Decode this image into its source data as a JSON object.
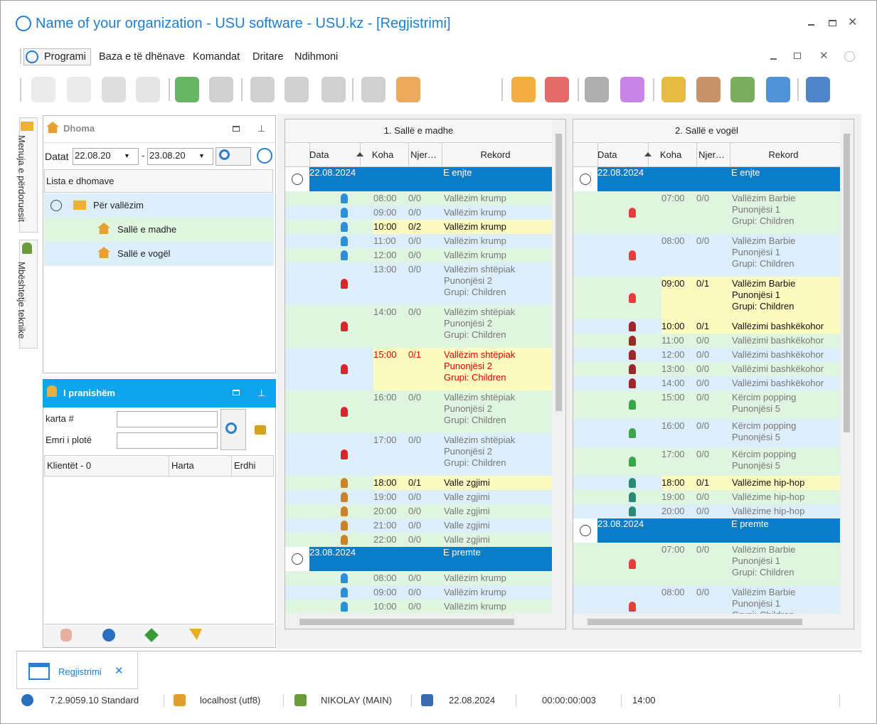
{
  "window": {
    "title": "Name of your organization - USU software - USU.kz - [Regjistrimi]"
  },
  "menu": [
    "Programi",
    "Baza e të dhënave",
    "Komandat",
    "Dritare",
    "Ndihmoni"
  ],
  "side_tabs": [
    "Menuja e përdoruesit",
    "Mbështetje teknike"
  ],
  "rooms_panel": {
    "title": "Dhoma",
    "date_label": "Datat",
    "date_from": "22.08.20",
    "separator": "-",
    "date_to": "23.08.20",
    "list_header": "Lista e dhomave",
    "group": "Për vallëzim",
    "rooms": [
      "Sallë e madhe",
      "Sallë e vogël"
    ]
  },
  "present_panel": {
    "title": "I pranishëm",
    "fields": [
      "karta #",
      "Emri i plotë"
    ],
    "columns": [
      "Klientët - 0",
      "Harta",
      "Erdhi"
    ]
  },
  "schedules": [
    {
      "title": "1. Sallë e madhe",
      "columns": [
        "Data",
        "Koha",
        "Njer…",
        "Rekord"
      ],
      "rows": [
        {
          "date": "22.08.2024",
          "day": "E enjte"
        },
        {
          "time": "08:00",
          "count": "0/0",
          "lines": [
            "Vallëzim krump"
          ],
          "icon": "#2a8fd8"
        },
        {
          "time": "09:00",
          "count": "0/0",
          "lines": [
            "Vallëzim krump"
          ],
          "icon": "#2a8fd8"
        },
        {
          "time": "10:00",
          "count": "0/2",
          "lines": [
            "Vallëzim krump"
          ],
          "icon": "#2a8fd8",
          "highlight": true
        },
        {
          "time": "11:00",
          "count": "0/0",
          "lines": [
            "Vallëzim krump"
          ],
          "icon": "#2a8fd8"
        },
        {
          "time": "12:00",
          "count": "0/0",
          "lines": [
            "Vallëzim krump"
          ],
          "icon": "#2a8fd8"
        },
        {
          "time": "13:00",
          "count": "0/0",
          "lines": [
            "Vallëzim shtëpiak",
            "Punonjësi 2",
            "Grupi: Children"
          ],
          "icon": "#d8262e"
        },
        {
          "time": "14:00",
          "count": "0/0",
          "lines": [
            "Vallëzim shtëpiak",
            "Punonjësi 2",
            "Grupi: Children"
          ],
          "icon": "#d8262e"
        },
        {
          "time": "15:00",
          "count": "0/1",
          "lines": [
            "Vallëzim shtëpiak",
            "Punonjësi 2",
            "Grupi: Children"
          ],
          "icon": "#d8262e",
          "highlight": true,
          "text_color": "#e00000"
        },
        {
          "time": "16:00",
          "count": "0/0",
          "lines": [
            "Vallëzim shtëpiak",
            "Punonjësi 2",
            "Grupi: Children"
          ],
          "icon": "#d8262e"
        },
        {
          "time": "17:00",
          "count": "0/0",
          "lines": [
            "Vallëzim shtëpiak",
            "Punonjësi 2",
            "Grupi: Children"
          ],
          "icon": "#d8262e"
        },
        {
          "time": "18:00",
          "count": "0/1",
          "lines": [
            "Valle zgjimi"
          ],
          "icon": "#c9832a",
          "highlight": true
        },
        {
          "time": "19:00",
          "count": "0/0",
          "lines": [
            "Valle zgjimi"
          ],
          "icon": "#c9832a"
        },
        {
          "time": "20:00",
          "count": "0/0",
          "lines": [
            "Valle zgjimi"
          ],
          "icon": "#c9832a"
        },
        {
          "time": "21:00",
          "count": "0/0",
          "lines": [
            "Valle zgjimi"
          ],
          "icon": "#c9832a"
        },
        {
          "time": "22:00",
          "count": "0/0",
          "lines": [
            "Valle zgjimi"
          ],
          "icon": "#c9832a"
        },
        {
          "date": "23.08.2024",
          "day": "E premte"
        },
        {
          "time": "08:00",
          "count": "0/0",
          "lines": [
            "Vallëzim krump"
          ],
          "icon": "#2a8fd8"
        },
        {
          "time": "09:00",
          "count": "0/0",
          "lines": [
            "Vallëzim krump"
          ],
          "icon": "#2a8fd8"
        },
        {
          "time": "10:00",
          "count": "0/0",
          "lines": [
            "Vallëzim krump"
          ],
          "icon": "#2a8fd8"
        }
      ]
    },
    {
      "title": "2. Sallë e vogël",
      "columns": [
        "Data",
        "Koha",
        "Njer…",
        "Rekord"
      ],
      "rows": [
        {
          "date": "22.08.2024",
          "day": "E enjte"
        },
        {
          "time": "07:00",
          "count": "0/0",
          "lines": [
            "Vallëzim Barbie",
            "Punonjësi 1",
            "Grupi: Children"
          ],
          "icon": "#e0403a"
        },
        {
          "time": "08:00",
          "count": "0/0",
          "lines": [
            "Vallëzim Barbie",
            "Punonjësi 1",
            "Grupi: Children"
          ],
          "icon": "#e0403a"
        },
        {
          "time": "09:00",
          "count": "0/1",
          "lines": [
            "Vallëzim Barbie",
            "Punonjësi 1",
            "Grupi: Children"
          ],
          "icon": "#e0403a",
          "highlight": true
        },
        {
          "time": "10:00",
          "count": "0/1",
          "lines": [
            "Vallëzimi bashkëkohor"
          ],
          "icon": "#9a2a2a",
          "highlight": true
        },
        {
          "time": "11:00",
          "count": "0/0",
          "lines": [
            "Vallëzimi bashkëkohor"
          ],
          "icon": "#9a2a2a"
        },
        {
          "time": "12:00",
          "count": "0/0",
          "lines": [
            "Vallëzimi bashkëkohor"
          ],
          "icon": "#9a2a2a"
        },
        {
          "time": "13:00",
          "count": "0/0",
          "lines": [
            "Vallëzimi bashkëkohor"
          ],
          "icon": "#9a2a2a"
        },
        {
          "time": "14:00",
          "count": "0/0",
          "lines": [
            "Vallëzimi bashkëkohor"
          ],
          "icon": "#9a2a2a"
        },
        {
          "time": "15:00",
          "count": "0/0",
          "lines": [
            "Kërcim popping",
            "Punonjësi 5"
          ],
          "icon": "#3aa64a"
        },
        {
          "time": "16:00",
          "count": "0/0",
          "lines": [
            "Kërcim popping",
            "Punonjësi 5"
          ],
          "icon": "#3aa64a"
        },
        {
          "time": "17:00",
          "count": "0/0",
          "lines": [
            "Kërcim popping",
            "Punonjësi 5"
          ],
          "icon": "#3aa64a"
        },
        {
          "time": "18:00",
          "count": "0/1",
          "lines": [
            "Vallëzime hip-hop"
          ],
          "icon": "#2a8a7a",
          "highlight": true
        },
        {
          "time": "19:00",
          "count": "0/0",
          "lines": [
            "Vallëzime hip-hop"
          ],
          "icon": "#2a8a7a"
        },
        {
          "time": "20:00",
          "count": "0/0",
          "lines": [
            "Vallëzime hip-hop"
          ],
          "icon": "#2a8a7a"
        },
        {
          "date": "23.08.2024",
          "day": "E premte"
        },
        {
          "time": "07:00",
          "count": "0/0",
          "lines": [
            "Vallëzim Barbie",
            "Punonjësi 1",
            "Grupi: Children"
          ],
          "icon": "#e0403a"
        },
        {
          "time": "08:00",
          "count": "0/0",
          "lines": [
            "Vallëzim Barbie",
            "Punonjësi 1",
            "Grupi: Children"
          ],
          "icon": "#e0403a"
        }
      ]
    }
  ],
  "tabs": [
    "Regjistrimi"
  ],
  "status": [
    "7.2.9059.10 Standard",
    "localhost (utf8)",
    "NIKOLAY (MAIN)",
    "22.08.2024",
    "00:00:00:003",
    "14:00"
  ]
}
